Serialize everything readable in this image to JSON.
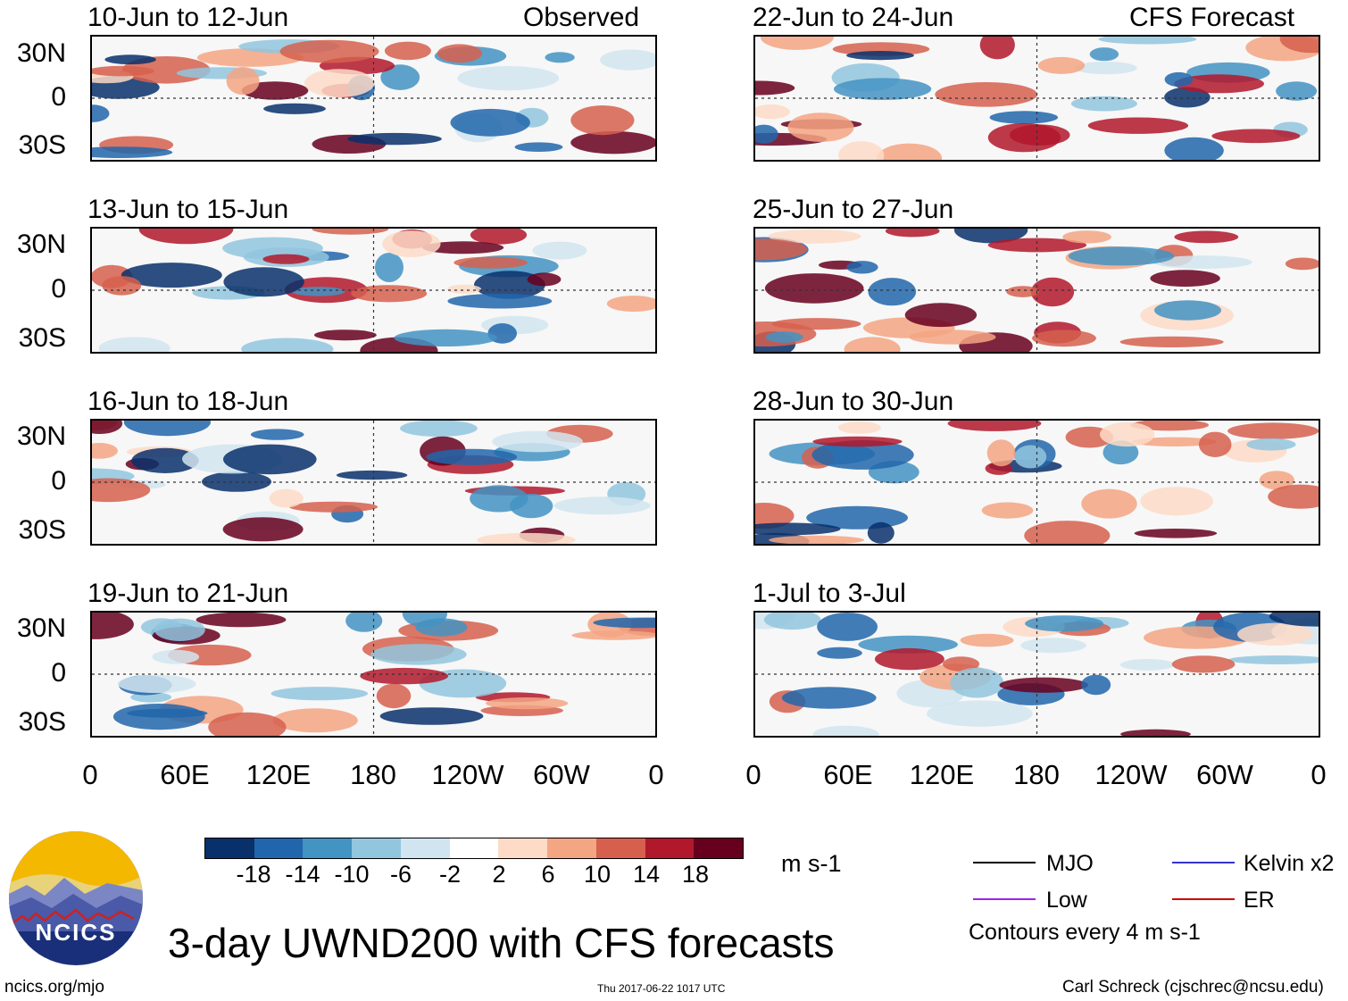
{
  "headers": {
    "left": "Observed",
    "right": "CFS Forecast"
  },
  "panels": {
    "left": [
      {
        "title": "10-Jun to 12-Jun"
      },
      {
        "title": "13-Jun to 15-Jun"
      },
      {
        "title": "16-Jun to 18-Jun"
      },
      {
        "title": "19-Jun to 21-Jun"
      }
    ],
    "right": [
      {
        "title": "22-Jun to 24-Jun"
      },
      {
        "title": "25-Jun to 27-Jun"
      },
      {
        "title": "28-Jun to 30-Jun"
      },
      {
        "title": "1-Jul to 3-Jul"
      }
    ]
  },
  "axes": {
    "lat_labels": [
      "30N",
      "0",
      "30S"
    ],
    "lon_labels": [
      "0",
      "60E",
      "120E",
      "180",
      "120W",
      "60W",
      "0"
    ]
  },
  "colorbar": {
    "colors": [
      "#08306b",
      "#2166ac",
      "#4393c3",
      "#92c5de",
      "#d1e5f0",
      "#ffffff",
      "#fddbc7",
      "#f4a582",
      "#d6604d",
      "#b2182b",
      "#67001f"
    ],
    "ticks": [
      "-18",
      "-14",
      "-10",
      "-6",
      "-2",
      "2",
      "6",
      "10",
      "14",
      "18"
    ],
    "units": "m s-1"
  },
  "legend": {
    "items": [
      {
        "label": "MJO",
        "color": "#000000"
      },
      {
        "label": "Kelvin x2",
        "color": "#3333cc"
      },
      {
        "label": "Low",
        "color": "#a020f0"
      },
      {
        "label": "ER",
        "color": "#cc0000"
      }
    ],
    "contours_note": "Contours every 4 m s-1"
  },
  "title": "3-day UWND200 with CFS forecasts",
  "logo_text": "NCICS",
  "footer": {
    "url": "ncics.org/mjo",
    "timestamp": "Thu 2017-06-22 1017 UTC",
    "credit": "Carl Schreck (cjschrec@ncsu.edu)"
  }
}
